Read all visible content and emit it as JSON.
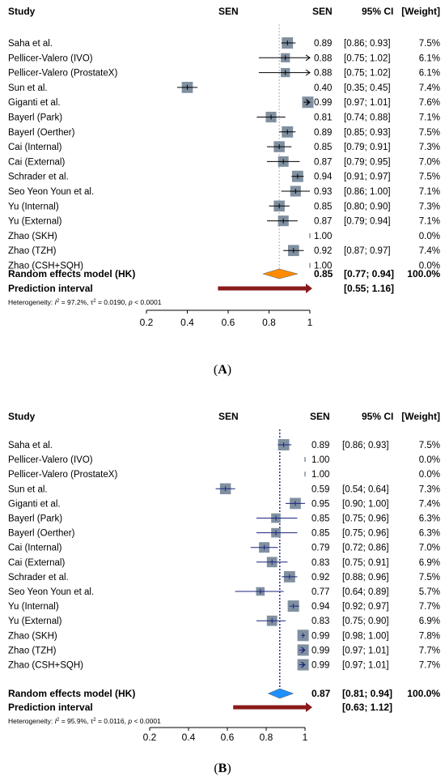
{
  "colors": {
    "square": "#8090a0",
    "diamond_a": "#ff8c00",
    "diamond_b": "#1e90ff",
    "prediction": "#8b1a1a",
    "line_b": "#1a237e",
    "dotted_b": "#1a237e"
  },
  "chart_data": [
    {
      "type": "forest",
      "panel_label": "(A)",
      "panel_letter": "A",
      "headers": {
        "study": "Study",
        "measure": "SEN",
        "estimate": "SEN",
        "ci": "95% CI",
        "weight": "[Weight]"
      },
      "xlim": [
        0.2,
        1
      ],
      "ticks": [
        "0.2",
        "0.4",
        "0.6",
        "0.8",
        "1"
      ],
      "tick_values": [
        0.2,
        0.4,
        0.6,
        0.8,
        1.0
      ],
      "studies": [
        {
          "name": "Saha et al.",
          "est": 0.89,
          "lo": 0.86,
          "hi": 0.93,
          "est_text": "0.89",
          "ci_text": "[0.86; 0.93]",
          "weight_text": "7.5%",
          "weight": 7.5
        },
        {
          "name": "Pellicer-Valero (IVO)",
          "est": 0.88,
          "lo": 0.75,
          "hi": 1.02,
          "est_text": "0.88",
          "ci_text": "[0.75; 1.02]",
          "weight_text": "6.1%",
          "weight": 6.1
        },
        {
          "name": "Pellicer-Valero (ProstateX)",
          "est": 0.88,
          "lo": 0.75,
          "hi": 1.02,
          "est_text": "0.88",
          "ci_text": "[0.75; 1.02]",
          "weight_text": "6.1%",
          "weight": 6.1
        },
        {
          "name": "Sun et al.",
          "est": 0.4,
          "lo": 0.35,
          "hi": 0.45,
          "est_text": "0.40",
          "ci_text": "[0.35; 0.45]",
          "weight_text": "7.4%",
          "weight": 7.4
        },
        {
          "name": "Giganti et al.",
          "est": 0.99,
          "lo": 0.97,
          "hi": 1.01,
          "est_text": "0.99",
          "ci_text": "[0.97; 1.01]",
          "weight_text": "7.6%",
          "weight": 7.6
        },
        {
          "name": "Bayerl (Park)",
          "est": 0.81,
          "lo": 0.74,
          "hi": 0.88,
          "est_text": "0.81",
          "ci_text": "[0.74; 0.88]",
          "weight_text": "7.1%",
          "weight": 7.1
        },
        {
          "name": "Bayerl (Oerther)",
          "est": 0.89,
          "lo": 0.85,
          "hi": 0.93,
          "est_text": "0.89",
          "ci_text": "[0.85; 0.93]",
          "weight_text": "7.5%",
          "weight": 7.5
        },
        {
          "name": "Cai (Internal)",
          "est": 0.85,
          "lo": 0.79,
          "hi": 0.91,
          "est_text": "0.85",
          "ci_text": "[0.79; 0.91]",
          "weight_text": "7.3%",
          "weight": 7.3
        },
        {
          "name": "Cai (External)",
          "est": 0.87,
          "lo": 0.79,
          "hi": 0.95,
          "est_text": "0.87",
          "ci_text": "[0.79; 0.95]",
          "weight_text": "7.0%",
          "weight": 7.0
        },
        {
          "name": "Schrader et al.",
          "est": 0.94,
          "lo": 0.91,
          "hi": 0.97,
          "est_text": "0.94",
          "ci_text": "[0.91; 0.97]",
          "weight_text": "7.5%",
          "weight": 7.5
        },
        {
          "name": "Seo Yeon Youn et al.",
          "est": 0.93,
          "lo": 0.86,
          "hi": 1.0,
          "est_text": "0.93",
          "ci_text": "[0.86; 1.00]",
          "weight_text": "7.1%",
          "weight": 7.1
        },
        {
          "name": "Yu (Internal)",
          "est": 0.85,
          "lo": 0.8,
          "hi": 0.9,
          "est_text": "0.85",
          "ci_text": "[0.80; 0.90]",
          "weight_text": "7.3%",
          "weight": 7.3
        },
        {
          "name": "Yu (External)",
          "est": 0.87,
          "lo": 0.79,
          "hi": 0.94,
          "est_text": "0.87",
          "ci_text": "[0.79; 0.94]",
          "weight_text": "7.1%",
          "weight": 7.1
        },
        {
          "name": "Zhao (SKH)",
          "est": 1.0,
          "lo": null,
          "hi": null,
          "est_text": "1.00",
          "ci_text": "",
          "weight_text": "0.0%",
          "weight": 0.0
        },
        {
          "name": "Zhao (TZH)",
          "est": 0.92,
          "lo": 0.87,
          "hi": 0.97,
          "est_text": "0.92",
          "ci_text": "[0.87; 0.97]",
          "weight_text": "7.4%",
          "weight": 7.4
        },
        {
          "name": "Zhao (CSH+SQH)",
          "est": 1.0,
          "lo": null,
          "hi": null,
          "est_text": "1.00",
          "ci_text": "",
          "weight_text": "0.0%",
          "weight": 0.0
        }
      ],
      "summary": {
        "label": "Random effects model (HK)",
        "est": 0.85,
        "lo": 0.77,
        "hi": 0.94,
        "est_text": "0.85",
        "ci_text": "[0.77; 0.94]",
        "weight_text": "100.0%"
      },
      "prediction": {
        "label": "Prediction interval",
        "lo": 0.55,
        "hi": 1.16,
        "ci_text": "[0.55; 1.16]"
      },
      "heterogeneity": {
        "prefix": "Heterogeneity: ",
        "i2_sym": "I",
        "i2_val": " = 97.2%, ",
        "tau_sym": "τ",
        "tau_val": " = 0.0190, ",
        "p_sym": "p",
        "p_val": " < 0.0001"
      }
    },
    {
      "type": "forest",
      "panel_label": "(B)",
      "panel_letter": "B",
      "headers": {
        "study": "Study",
        "measure": "SEN",
        "estimate": "SEN",
        "ci": "95% CI",
        "weight": "[Weight]"
      },
      "xlim": [
        0.2,
        1
      ],
      "ticks": [
        "0.2",
        "0.4",
        "0.6",
        "0.8",
        "1"
      ],
      "tick_values": [
        0.2,
        0.4,
        0.6,
        0.8,
        1.0
      ],
      "studies": [
        {
          "name": "Saha et al.",
          "est": 0.89,
          "lo": 0.86,
          "hi": 0.93,
          "est_text": "0.89",
          "ci_text": "[0.86; 0.93]",
          "weight_text": "7.5%",
          "weight": 7.5
        },
        {
          "name": "Pellicer-Valero (IVO)",
          "est": 1.0,
          "lo": null,
          "hi": null,
          "est_text": "1.00",
          "ci_text": "",
          "weight_text": "0.0%",
          "weight": 0.0
        },
        {
          "name": "Pellicer-Valero (ProstateX)",
          "est": 1.0,
          "lo": null,
          "hi": null,
          "est_text": "1.00",
          "ci_text": "",
          "weight_text": "0.0%",
          "weight": 0.0
        },
        {
          "name": "Sun et al.",
          "est": 0.59,
          "lo": 0.54,
          "hi": 0.64,
          "est_text": "0.59",
          "ci_text": "[0.54; 0.64]",
          "weight_text": "7.3%",
          "weight": 7.3
        },
        {
          "name": "Giganti et al.",
          "est": 0.95,
          "lo": 0.9,
          "hi": 1.0,
          "est_text": "0.95",
          "ci_text": "[0.90; 1.00]",
          "weight_text": "7.4%",
          "weight": 7.4
        },
        {
          "name": "Bayerl (Park)",
          "est": 0.85,
          "lo": 0.75,
          "hi": 0.96,
          "est_text": "0.85",
          "ci_text": "[0.75; 0.96]",
          "weight_text": "6.3%",
          "weight": 6.3
        },
        {
          "name": "Bayerl (Oerther)",
          "est": 0.85,
          "lo": 0.75,
          "hi": 0.96,
          "est_text": "0.85",
          "ci_text": "[0.75; 0.96]",
          "weight_text": "6.3%",
          "weight": 6.3
        },
        {
          "name": "Cai (Internal)",
          "est": 0.79,
          "lo": 0.72,
          "hi": 0.86,
          "est_text": "0.79",
          "ci_text": "[0.72; 0.86]",
          "weight_text": "7.0%",
          "weight": 7.0
        },
        {
          "name": "Cai (External)",
          "est": 0.83,
          "lo": 0.75,
          "hi": 0.91,
          "est_text": "0.83",
          "ci_text": "[0.75; 0.91]",
          "weight_text": "6.9%",
          "weight": 6.9
        },
        {
          "name": "Schrader et al.",
          "est": 0.92,
          "lo": 0.88,
          "hi": 0.96,
          "est_text": "0.92",
          "ci_text": "[0.88; 0.96]",
          "weight_text": "7.5%",
          "weight": 7.5
        },
        {
          "name": "Seo Yeon Youn et al.",
          "est": 0.77,
          "lo": 0.64,
          "hi": 0.89,
          "est_text": "0.77",
          "ci_text": "[0.64; 0.89]",
          "weight_text": "5.7%",
          "weight": 5.7
        },
        {
          "name": "Yu (Internal)",
          "est": 0.94,
          "lo": 0.92,
          "hi": 0.97,
          "est_text": "0.94",
          "ci_text": "[0.92; 0.97]",
          "weight_text": "7.7%",
          "weight": 7.7
        },
        {
          "name": "Yu (External)",
          "est": 0.83,
          "lo": 0.75,
          "hi": 0.9,
          "est_text": "0.83",
          "ci_text": "[0.75; 0.90]",
          "weight_text": "6.9%",
          "weight": 6.9
        },
        {
          "name": "Zhao (SKH)",
          "est": 0.99,
          "lo": 0.98,
          "hi": 1.0,
          "est_text": "0.99",
          "ci_text": "[0.98; 1.00]",
          "weight_text": "7.8%",
          "weight": 7.8
        },
        {
          "name": "Zhao (TZH)",
          "est": 0.99,
          "lo": 0.97,
          "hi": 1.01,
          "est_text": "0.99",
          "ci_text": "[0.97; 1.01]",
          "weight_text": "7.7%",
          "weight": 7.7
        },
        {
          "name": "Zhao (CSH+SQH)",
          "est": 0.99,
          "lo": 0.97,
          "hi": 1.01,
          "est_text": "0.99",
          "ci_text": "[0.97; 1.01]",
          "weight_text": "7.7%",
          "weight": 7.7
        }
      ],
      "summary": {
        "label": "Random effects model (HK)",
        "est": 0.87,
        "lo": 0.81,
        "hi": 0.94,
        "est_text": "0.87",
        "ci_text": "[0.81; 0.94]",
        "weight_text": "100.0%"
      },
      "prediction": {
        "label": "Prediction interval",
        "lo": 0.63,
        "hi": 1.12,
        "ci_text": "[0.63; 1.12]"
      },
      "heterogeneity": {
        "prefix": "Heterogeneity: ",
        "i2_sym": "I",
        "i2_val": " = 95.9%, ",
        "tau_sym": "τ",
        "tau_val": " = 0.0116, ",
        "p_sym": "p",
        "p_val": " < 0.0001"
      }
    }
  ]
}
